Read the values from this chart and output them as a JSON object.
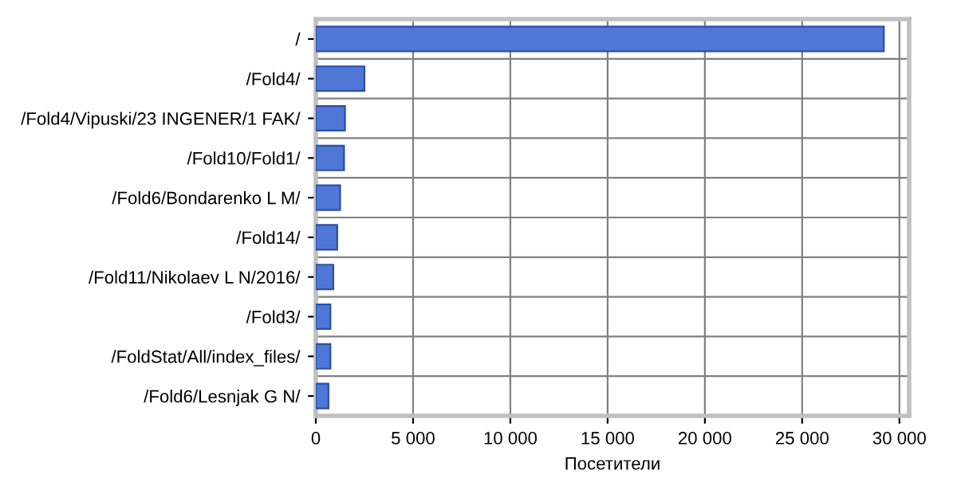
{
  "chart_data": {
    "type": "bar",
    "orientation": "horizontal",
    "xlabel": "Посетители",
    "categories": [
      "/",
      "/Fold4/",
      "/Fold4/Vipuski/23 INGENER/1 FAK/",
      "/Fold10/Fold1/",
      "/Fold6/Bondarenko L M/",
      "/Fold14/",
      "/Fold11/Nikolaev L N/2016/",
      "/Fold3/",
      "/FoldStat/All/index_files/",
      "/Fold6/Lesnjak G N/"
    ],
    "values": [
      29200,
      2500,
      1500,
      1450,
      1250,
      1100,
      900,
      750,
      750,
      650
    ],
    "color": "#4f77d6",
    "xlim": [
      0,
      30500
    ],
    "xticks": [
      0,
      {
        "value": 5000,
        "label": "5 000"
      },
      {
        "value": 10000,
        "label": "10 000"
      },
      {
        "value": 15000,
        "label": "15 000"
      },
      {
        "value": 20000,
        "label": "20 000"
      },
      {
        "value": 25000,
        "label": "25 000"
      },
      {
        "value": 30000,
        "label": "30 000"
      }
    ],
    "grid": true
  }
}
